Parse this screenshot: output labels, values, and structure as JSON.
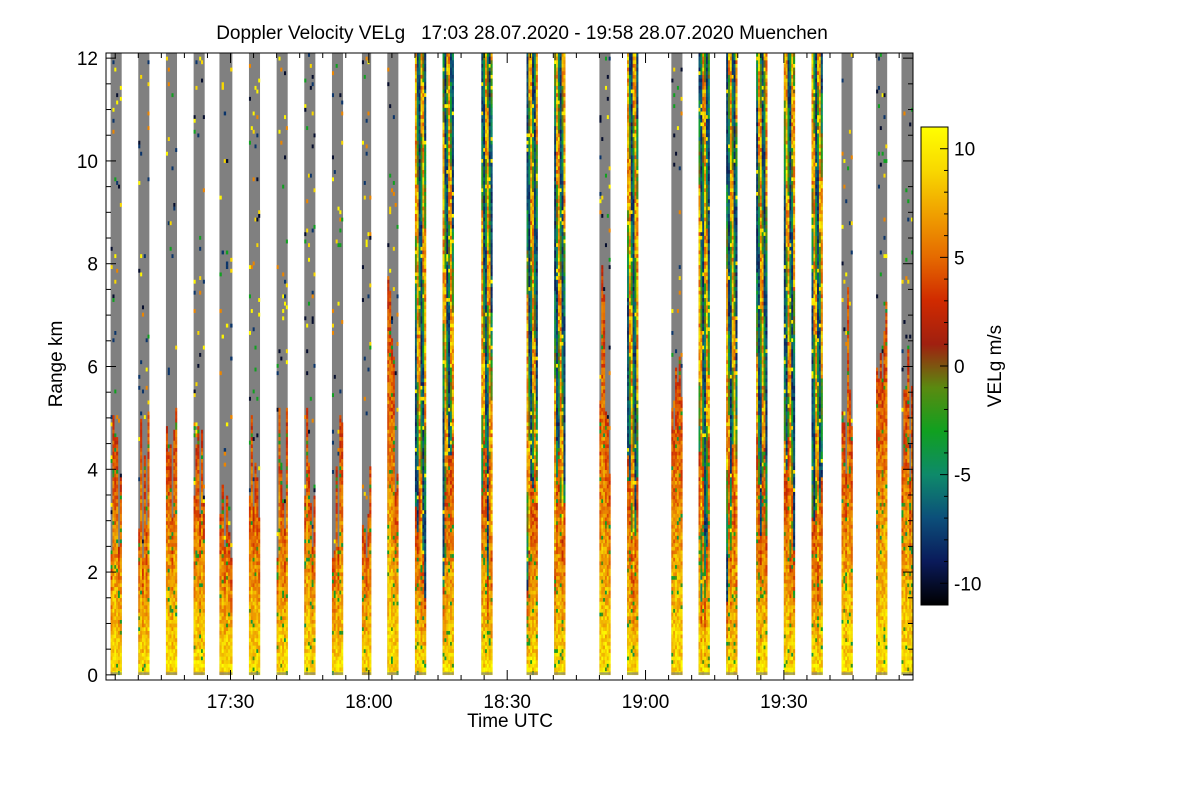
{
  "chart_data": {
    "type": "heatmap",
    "title": "Doppler Velocity VELg   17:03 28.07.2020 - 19:58 28.07.2020 Muenchen",
    "xlabel": "Time UTC",
    "ylabel": "Range km",
    "colorbar_label": "VELg m/s",
    "x_range_min": [
      1023,
      1198
    ],
    "y_range_km": [
      -0.1,
      12.1
    ],
    "x_ticks": [
      {
        "value": 1050,
        "label": "17:30"
      },
      {
        "value": 1080,
        "label": "18:00"
      },
      {
        "value": 1110,
        "label": "18:30"
      },
      {
        "value": 1140,
        "label": "19:00"
      },
      {
        "value": 1170,
        "label": "19:30"
      }
    ],
    "y_ticks": [
      {
        "value": 0,
        "label": "0"
      },
      {
        "value": 2,
        "label": "2"
      },
      {
        "value": 4,
        "label": "4"
      },
      {
        "value": 6,
        "label": "6"
      },
      {
        "value": 8,
        "label": "8"
      },
      {
        "value": 10,
        "label": "10"
      },
      {
        "value": 12,
        "label": "12"
      }
    ],
    "colorbar_range": [
      -11,
      11
    ],
    "colorbar_ticks": [
      {
        "value": 10,
        "label": "10"
      },
      {
        "value": 5,
        "label": "5"
      },
      {
        "value": 0,
        "label": "0"
      },
      {
        "value": -5,
        "label": "-5"
      },
      {
        "value": -10,
        "label": "-10"
      }
    ],
    "colormap": [
      "#000000",
      "#0a1a5a",
      "#0c4f7a",
      "#0e8a6a",
      "#10a020",
      "#5a8a10",
      "#a02010",
      "#d02a00",
      "#e56a00",
      "#f0a000",
      "#f8d800",
      "#ffff00"
    ],
    "missing_color": "#808080",
    "profiles": [
      {
        "t0": 1024.0,
        "t1": 1026.4,
        "kind": "clear"
      },
      {
        "t0": 1030.0,
        "t1": 1032.4,
        "kind": "clear"
      },
      {
        "t0": 1036.0,
        "t1": 1038.4,
        "kind": "clear"
      },
      {
        "t0": 1042.0,
        "t1": 1044.4,
        "kind": "clear"
      },
      {
        "t0": 1047.6,
        "t1": 1050.4,
        "kind": "clear"
      },
      {
        "t0": 1054.0,
        "t1": 1056.4,
        "kind": "clear"
      },
      {
        "t0": 1060.0,
        "t1": 1062.4,
        "kind": "clear"
      },
      {
        "t0": 1066.0,
        "t1": 1068.4,
        "kind": "clear"
      },
      {
        "t0": 1072.0,
        "t1": 1074.4,
        "kind": "clear"
      },
      {
        "t0": 1078.5,
        "t1": 1080.5,
        "kind": "clear"
      },
      {
        "t0": 1084.0,
        "t1": 1086.4,
        "kind": "transition"
      },
      {
        "t0": 1090.0,
        "t1": 1092.4,
        "kind": "cloud"
      },
      {
        "t0": 1096.0,
        "t1": 1098.4,
        "kind": "cloud"
      },
      {
        "t0": 1104.4,
        "t1": 1106.8,
        "kind": "cloud"
      },
      {
        "t0": 1114.2,
        "t1": 1116.6,
        "kind": "cloud"
      },
      {
        "t0": 1120.2,
        "t1": 1122.6,
        "kind": "cloud"
      },
      {
        "t0": 1130.0,
        "t1": 1132.4,
        "kind": "transition"
      },
      {
        "t0": 1136.0,
        "t1": 1138.4,
        "kind": "cloud"
      },
      {
        "t0": 1145.6,
        "t1": 1148.0,
        "kind": "transition"
      },
      {
        "t0": 1151.5,
        "t1": 1153.9,
        "kind": "cloud"
      },
      {
        "t0": 1157.5,
        "t1": 1159.9,
        "kind": "cloud"
      },
      {
        "t0": 1164.0,
        "t1": 1166.4,
        "kind": "cloud"
      },
      {
        "t0": 1170.0,
        "t1": 1172.4,
        "kind": "cloud"
      },
      {
        "t0": 1176.0,
        "t1": 1178.4,
        "kind": "cloud"
      },
      {
        "t0": 1182.5,
        "t1": 1184.9,
        "kind": "transition"
      },
      {
        "t0": 1190.0,
        "t1": 1192.4,
        "kind": "transition"
      },
      {
        "t0": 1195.5,
        "t1": 1198.0,
        "kind": "transition"
      }
    ]
  }
}
